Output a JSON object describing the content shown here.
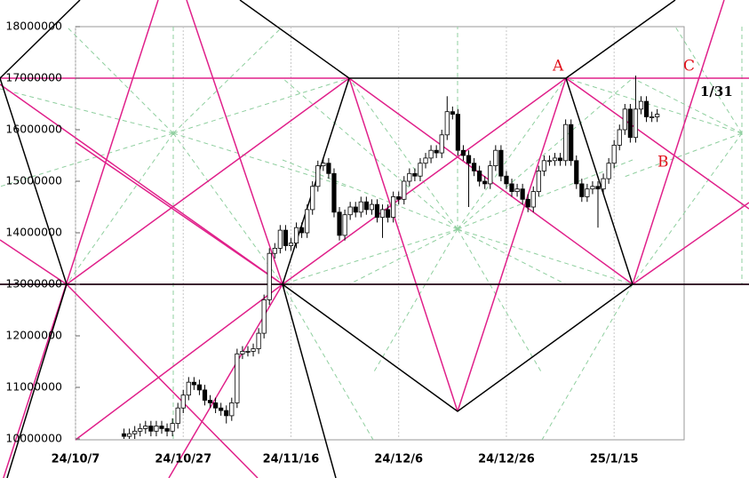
{
  "chart_data": {
    "type": "candlestick",
    "x": [
      "24/10/16",
      "24/10/17",
      "24/10/18",
      "24/10/19",
      "24/10/20",
      "24/10/21",
      "24/10/22",
      "24/10/23",
      "24/10/24",
      "24/10/25",
      "24/10/26",
      "24/10/27",
      "24/10/28",
      "24/10/29",
      "24/10/30",
      "24/10/31",
      "24/11/1",
      "24/11/2",
      "24/11/3",
      "24/11/4",
      "24/11/5",
      "24/11/6",
      "24/11/7",
      "24/11/8",
      "24/11/9",
      "24/11/10",
      "24/11/11",
      "24/11/12",
      "24/11/13",
      "24/11/14",
      "24/11/15",
      "24/11/16",
      "24/11/17",
      "24/11/18",
      "24/11/19",
      "24/11/20",
      "24/11/21",
      "24/11/22",
      "24/11/23",
      "24/11/24",
      "24/11/25",
      "24/11/26",
      "24/11/27",
      "24/11/28",
      "24/11/29",
      "24/11/30",
      "24/12/1",
      "24/12/2",
      "24/12/3",
      "24/12/4",
      "24/12/5",
      "24/12/6",
      "24/12/7",
      "24/12/8",
      "24/12/9",
      "24/12/10",
      "24/12/11",
      "24/12/12",
      "24/12/13",
      "24/12/14",
      "24/12/15",
      "24/12/16",
      "24/12/17",
      "24/12/18",
      "24/12/19",
      "24/12/20",
      "24/12/21",
      "24/12/22",
      "24/12/23",
      "24/12/24",
      "24/12/25",
      "24/12/26",
      "24/12/27",
      "24/12/28",
      "24/12/29",
      "24/12/30",
      "24/12/31",
      "25/1/1",
      "25/1/2",
      "25/1/3",
      "25/1/4",
      "25/1/5",
      "25/1/6",
      "25/1/7",
      "25/1/8",
      "25/1/9",
      "25/1/10",
      "25/1/11",
      "25/1/12",
      "25/1/13",
      "25/1/14",
      "25/1/15",
      "25/1/16",
      "25/1/17",
      "25/1/18",
      "25/1/19",
      "25/1/20",
      "25/1/21",
      "25/1/22",
      "25/1/23"
    ],
    "open": [
      10100000,
      10050000,
      10100000,
      10150000,
      10200000,
      10250000,
      10150000,
      10250000,
      10200000,
      10150000,
      10300000,
      10600000,
      10850000,
      11100000,
      11050000,
      10950000,
      10750000,
      10700000,
      10600000,
      10550000,
      10450000,
      10700000,
      11650000,
      11700000,
      11700000,
      11750000,
      12050000,
      12700000,
      13600000,
      13700000,
      14050000,
      13750000,
      13800000,
      14100000,
      14000000,
      14450000,
      14900000,
      15300000,
      15350000,
      15150000,
      14400000,
      13950000,
      14350000,
      14500000,
      14400000,
      14600000,
      14450000,
      14550000,
      14300000,
      14450000,
      14300000,
      14700000,
      14650000,
      15000000,
      15150000,
      15100000,
      15350000,
      15450000,
      15600000,
      15550000,
      15900000,
      16350000,
      16300000,
      15600000,
      15500000,
      15350000,
      15200000,
      15000000,
      14950000,
      15300000,
      15600000,
      15100000,
      14950000,
      14800000,
      14850000,
      14650000,
      14500000,
      14800000,
      15200000,
      15400000,
      15400000,
      15450000,
      15400000,
      16100000,
      15400000,
      14950000,
      14700000,
      14850000,
      14900000,
      14850000,
      15050000,
      15350000,
      15700000,
      16000000,
      16400000,
      15850000,
      16400000,
      16550000,
      16250000,
      16250000
    ],
    "high": [
      10200000,
      10200000,
      10250000,
      10300000,
      10350000,
      10350000,
      10350000,
      10350000,
      10300000,
      10400000,
      10700000,
      10950000,
      11200000,
      11200000,
      11150000,
      11050000,
      10850000,
      10800000,
      10700000,
      10650000,
      10800000,
      11750000,
      11800000,
      11800000,
      11850000,
      12150000,
      12800000,
      13700000,
      13800000,
      14150000,
      14150000,
      13900000,
      14200000,
      14200000,
      14550000,
      15000000,
      15400000,
      15450000,
      15450000,
      15250000,
      14500000,
      14450000,
      14600000,
      14600000,
      14700000,
      14700000,
      14650000,
      14650000,
      14550000,
      14550000,
      14800000,
      14800000,
      15100000,
      15250000,
      15250000,
      15450000,
      15550000,
      15700000,
      15700000,
      16000000,
      16650000,
      16450000,
      16400000,
      15700000,
      15600000,
      15450000,
      15300000,
      15100000,
      15400000,
      15700000,
      15700000,
      15200000,
      15050000,
      14950000,
      14950000,
      14750000,
      14900000,
      15300000,
      15500000,
      15500000,
      15550000,
      15550000,
      16200000,
      16200000,
      15500000,
      15050000,
      14950000,
      15000000,
      15000000,
      15150000,
      15450000,
      15800000,
      16100000,
      16500000,
      16500000,
      17050000,
      16650000,
      16650000,
      16350000,
      16400000
    ],
    "low": [
      10000000,
      10000000,
      10000000,
      10050000,
      10100000,
      10050000,
      10050000,
      10100000,
      10050000,
      10050000,
      10200000,
      10500000,
      10750000,
      10950000,
      10850000,
      10650000,
      10600000,
      10500000,
      10450000,
      10300000,
      10350000,
      10600000,
      11550000,
      11600000,
      11600000,
      11650000,
      11950000,
      12600000,
      13500000,
      13600000,
      13650000,
      13650000,
      13700000,
      13900000,
      13900000,
      14350000,
      14800000,
      15200000,
      15050000,
      14300000,
      13850000,
      13850000,
      14250000,
      14300000,
      14300000,
      14350000,
      14350000,
      14200000,
      13900000,
      14200000,
      14200000,
      14550000,
      14550000,
      14900000,
      15000000,
      15000000,
      15250000,
      15350000,
      15450000,
      15450000,
      15800000,
      16200000,
      15500000,
      15400000,
      14500000,
      15100000,
      14900000,
      14850000,
      14850000,
      15200000,
      15000000,
      14850000,
      14700000,
      14700000,
      14550000,
      14400000,
      14400000,
      14700000,
      15100000,
      15300000,
      15300000,
      15300000,
      15300000,
      15300000,
      14850000,
      14600000,
      14600000,
      14750000,
      14100000,
      14750000,
      14950000,
      15250000,
      15600000,
      15900000,
      15750000,
      15750000,
      16300000,
      16150000,
      16150000,
      16150000
    ],
    "close": [
      10050000,
      10100000,
      10150000,
      10200000,
      10250000,
      10150000,
      10250000,
      10200000,
      10150000,
      10300000,
      10600000,
      10850000,
      11100000,
      11050000,
      10950000,
      10750000,
      10700000,
      10600000,
      10550000,
      10450000,
      10700000,
      11650000,
      11700000,
      11700000,
      11750000,
      12050000,
      12700000,
      13600000,
      13700000,
      14050000,
      13750000,
      13800000,
      14100000,
      14000000,
      14450000,
      14900000,
      15300000,
      15350000,
      15150000,
      14400000,
      13950000,
      14350000,
      14500000,
      14400000,
      14600000,
      14450000,
      14550000,
      14300000,
      14450000,
      14300000,
      14700000,
      14650000,
      15000000,
      15150000,
      15100000,
      15350000,
      15450000,
      15600000,
      15550000,
      15900000,
      16350000,
      16300000,
      15600000,
      15500000,
      15350000,
      15200000,
      15000000,
      14950000,
      15300000,
      15600000,
      15100000,
      14950000,
      14800000,
      14850000,
      14650000,
      14500000,
      14800000,
      15200000,
      15400000,
      15400000,
      15450000,
      15400000,
      16100000,
      15400000,
      14950000,
      14700000,
      14850000,
      14900000,
      14850000,
      15050000,
      15350000,
      15700000,
      16000000,
      16400000,
      15850000,
      16400000,
      16550000,
      16250000,
      16250000,
      16300000
    ],
    "up_color": "#ffffff",
    "down_color": "#000000",
    "xlim": [
      "24/10/7",
      "25/1/28"
    ],
    "xticks": [
      "24/10/7",
      "24/10/27",
      "24/11/16",
      "24/12/6",
      "24/12/26",
      "25/1/15"
    ],
    "ylim": [
      10000000,
      18000000
    ],
    "yticks": [
      10000000,
      11000000,
      12000000,
      13000000,
      14000000,
      15000000,
      16000000,
      17000000,
      18000000
    ],
    "grid": true,
    "annotations": [
      "A",
      "B",
      "C",
      "1/31"
    ]
  }
}
